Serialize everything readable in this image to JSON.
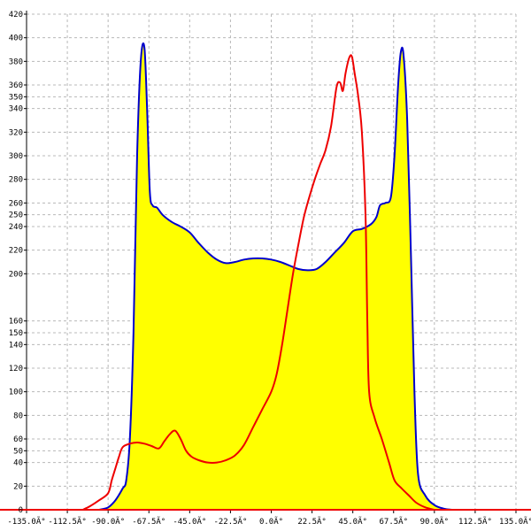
{
  "chart_data": {
    "type": "area",
    "title": "",
    "xlabel": "",
    "ylabel": "",
    "xlim": [
      -135,
      135
    ],
    "ylim": [
      0,
      420
    ],
    "grid": true,
    "x_ticks": [
      {
        "value": -135,
        "label": "-135.0Ã°"
      },
      {
        "value": -112.5,
        "label": "-112.5Ã°"
      },
      {
        "value": -90,
        "label": "-90.0Ã°"
      },
      {
        "value": -67.5,
        "label": "-67.5Ã°"
      },
      {
        "value": -45,
        "label": "-45.0Ã°"
      },
      {
        "value": -22.5,
        "label": "-22.5Ã°"
      },
      {
        "value": 0,
        "label": "0.0Ã°"
      },
      {
        "value": 22.5,
        "label": "22.5Ã°"
      },
      {
        "value": 45,
        "label": "45.0Ã°"
      },
      {
        "value": 67.5,
        "label": "67.5Ã°"
      },
      {
        "value": 90,
        "label": "90.0Ã°"
      },
      {
        "value": 112.5,
        "label": "112.5Ã°"
      },
      {
        "value": 135,
        "label": "135.0Ã°"
      }
    ],
    "y_ticks": [
      {
        "value": 0,
        "label": "0"
      },
      {
        "value": 20,
        "label": "20"
      },
      {
        "value": 40,
        "label": "40"
      },
      {
        "value": 50,
        "label": "50"
      },
      {
        "value": 60,
        "label": "60"
      },
      {
        "value": 80,
        "label": "80"
      },
      {
        "value": 100,
        "label": "100"
      },
      {
        "value": 120,
        "label": "120"
      },
      {
        "value": 140,
        "label": "140"
      },
      {
        "value": 150,
        "label": "150"
      },
      {
        "value": 160,
        "label": "160"
      },
      {
        "value": 200,
        "label": "200"
      },
      {
        "value": 220,
        "label": "220"
      },
      {
        "value": 240,
        "label": "240"
      },
      {
        "value": 250,
        "label": "250"
      },
      {
        "value": 260,
        "label": "260"
      },
      {
        "value": 280,
        "label": "280"
      },
      {
        "value": 300,
        "label": "300"
      },
      {
        "value": 320,
        "label": "320"
      },
      {
        "value": 340,
        "label": "340"
      },
      {
        "value": 350,
        "label": "350"
      },
      {
        "value": 360,
        "label": "360"
      },
      {
        "value": 380,
        "label": "380"
      },
      {
        "value": 400,
        "label": "400"
      },
      {
        "value": 420,
        "label": "420"
      }
    ],
    "colors": {
      "fill": "#ffff00",
      "blue_series": "#0000cc",
      "red_series": "#ee0000",
      "grid": "#b8b8b8",
      "background": "#ffffff"
    },
    "series": [
      {
        "color": "blue",
        "filled": true,
        "points": [
          [
            -95,
            0
          ],
          [
            -90,
            2
          ],
          [
            -86,
            8
          ],
          [
            -82,
            18
          ],
          [
            -80,
            25
          ],
          [
            -78,
            60
          ],
          [
            -76,
            150
          ],
          [
            -74,
            300
          ],
          [
            -72,
            380
          ],
          [
            -70,
            392
          ],
          [
            -68.5,
            340
          ],
          [
            -67,
            270
          ],
          [
            -65.5,
            258
          ],
          [
            -63,
            256
          ],
          [
            -60,
            250
          ],
          [
            -55,
            244
          ],
          [
            -50,
            240
          ],
          [
            -45,
            235
          ],
          [
            -40,
            226
          ],
          [
            -35,
            218
          ],
          [
            -30,
            212
          ],
          [
            -25,
            209
          ],
          [
            -20,
            210
          ],
          [
            -15,
            212
          ],
          [
            -10,
            213
          ],
          [
            -5,
            213
          ],
          [
            0,
            212
          ],
          [
            5,
            210
          ],
          [
            10,
            207
          ],
          [
            15,
            204
          ],
          [
            20,
            203
          ],
          [
            25,
            204
          ],
          [
            30,
            210
          ],
          [
            35,
            218
          ],
          [
            40,
            226
          ],
          [
            45,
            236
          ],
          [
            50,
            238
          ],
          [
            55,
            242
          ],
          [
            58,
            248
          ],
          [
            60,
            258
          ],
          [
            63,
            260
          ],
          [
            66,
            265
          ],
          [
            68,
            300
          ],
          [
            70,
            360
          ],
          [
            71.5,
            388
          ],
          [
            73,
            385
          ],
          [
            75,
            330
          ],
          [
            77,
            220
          ],
          [
            79,
            100
          ],
          [
            81,
            30
          ],
          [
            85,
            12
          ],
          [
            90,
            4
          ],
          [
            95,
            1
          ],
          [
            100,
            0
          ]
        ]
      },
      {
        "color": "red",
        "filled": false,
        "points": [
          [
            -104,
            0
          ],
          [
            -100,
            3
          ],
          [
            -95,
            8
          ],
          [
            -90,
            14
          ],
          [
            -88,
            25
          ],
          [
            -86,
            35
          ],
          [
            -84,
            45
          ],
          [
            -82,
            53
          ],
          [
            -78,
            56
          ],
          [
            -74,
            57
          ],
          [
            -70,
            56
          ],
          [
            -66,
            54
          ],
          [
            -62,
            52
          ],
          [
            -59,
            58
          ],
          [
            -56,
            64
          ],
          [
            -53,
            67
          ],
          [
            -50,
            60
          ],
          [
            -47,
            50
          ],
          [
            -44,
            45
          ],
          [
            -40,
            42
          ],
          [
            -35,
            40
          ],
          [
            -30,
            40
          ],
          [
            -25,
            42
          ],
          [
            -20,
            46
          ],
          [
            -15,
            55
          ],
          [
            -10,
            70
          ],
          [
            -5,
            85
          ],
          [
            0,
            100
          ],
          [
            3,
            115
          ],
          [
            6,
            140
          ],
          [
            9,
            170
          ],
          [
            12,
            200
          ],
          [
            15,
            225
          ],
          [
            18,
            248
          ],
          [
            21,
            265
          ],
          [
            24,
            280
          ],
          [
            27,
            293
          ],
          [
            30,
            305
          ],
          [
            33,
            325
          ],
          [
            36,
            358
          ],
          [
            38,
            362
          ],
          [
            39.5,
            355
          ],
          [
            41,
            370
          ],
          [
            43,
            383
          ],
          [
            44.5,
            384
          ],
          [
            46,
            370
          ],
          [
            48,
            350
          ],
          [
            50,
            320
          ],
          [
            52,
            250
          ],
          [
            53,
            160
          ],
          [
            54,
            100
          ],
          [
            57,
            78
          ],
          [
            61,
            60
          ],
          [
            65,
            40
          ],
          [
            68,
            25
          ],
          [
            72,
            18
          ],
          [
            76,
            12
          ],
          [
            80,
            6
          ],
          [
            85,
            2
          ],
          [
            90,
            0
          ]
        ]
      }
    ]
  }
}
